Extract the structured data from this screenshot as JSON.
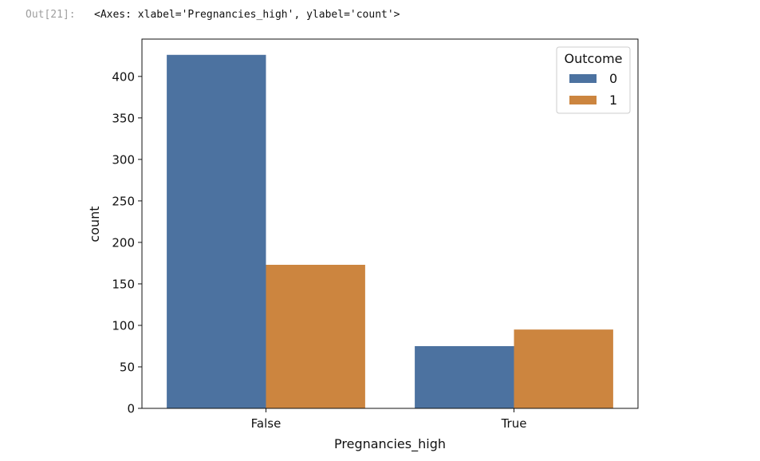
{
  "cell": {
    "prompt": "Out[21]:",
    "output_text": "<Axes: xlabel='Pregnancies_high', ylabel='count'>"
  },
  "chart_data": {
    "type": "bar",
    "title": "",
    "xlabel": "Pregnancies_high",
    "ylabel": "count",
    "categories": [
      "False",
      "True"
    ],
    "series": [
      {
        "name": "0",
        "values": [
          426,
          75
        ],
        "color": "#4c72a0"
      },
      {
        "name": "1",
        "values": [
          173,
          95
        ],
        "color": "#cc853f"
      }
    ],
    "ylim": [
      0,
      445
    ],
    "yticks": [
      0,
      50,
      100,
      150,
      200,
      250,
      300,
      350,
      400
    ],
    "grid": false,
    "legend": {
      "title": "Outcome",
      "placement": "upper-right"
    }
  }
}
